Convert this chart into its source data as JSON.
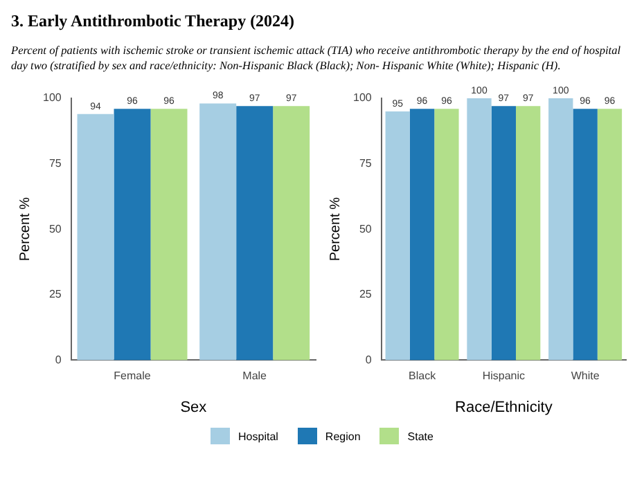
{
  "chart_data": [
    {
      "type": "bar",
      "title": "3.  Early Antithrombotic Therapy (2024)",
      "subtitle": "Percent of patients with ischemic stroke or transient ischemic attack (TIA) who receive antithrombotic therapy by the end of hospital day two (stratified by sex and race/ethnicity:  Non-Hispanic Black (Black); Non- Hispanic White (White); Hispanic (H).",
      "xlabel": "Sex",
      "ylabel": "Percent %",
      "categories": [
        "Female",
        "Male"
      ],
      "ylim": [
        0,
        100
      ],
      "yticks": [
        0,
        25,
        50,
        75,
        100
      ],
      "grid": false,
      "data_labels": true,
      "legend": "bottom",
      "series": [
        {
          "name": "Hospital",
          "color": "#a6cee3",
          "values": [
            94,
            98
          ]
        },
        {
          "name": "Region",
          "color": "#1f78b4",
          "values": [
            96,
            97
          ]
        },
        {
          "name": "State",
          "color": "#b2df8a",
          "values": [
            96,
            97
          ]
        }
      ]
    },
    {
      "type": "bar",
      "xlabel": "Race/Ethnicity",
      "ylabel": "Percent %",
      "categories": [
        "Black",
        "Hispanic",
        "White"
      ],
      "ylim": [
        0,
        100
      ],
      "yticks": [
        0,
        25,
        50,
        75,
        100
      ],
      "grid": false,
      "data_labels": true,
      "series": [
        {
          "color": "#a6cee3",
          "values": [
            95,
            100,
            100
          ]
        },
        {
          "color": "#1f78b4",
          "values": [
            96,
            97,
            96
          ]
        },
        {
          "color": "#b2df8a",
          "values": [
            96,
            97,
            96
          ]
        }
      ]
    }
  ]
}
